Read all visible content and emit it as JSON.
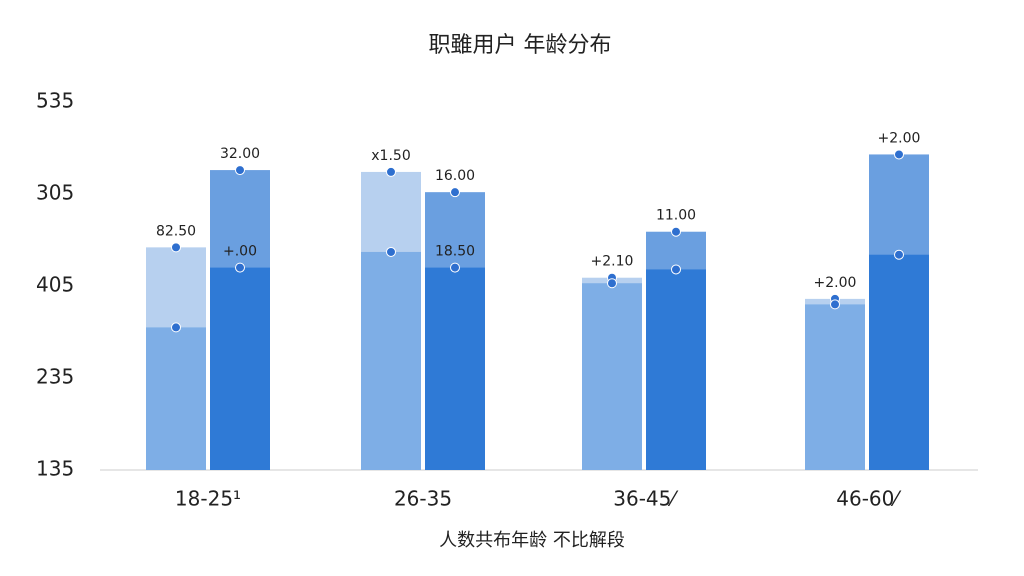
{
  "chart_data": {
    "type": "grouped-layered-bar",
    "title": "职雖用户 年龄分布",
    "x_label": "人数共布年龄 不比解段",
    "categories": [
      "18-25¹",
      "26-35",
      "36-45⁄",
      "46-60⁄"
    ],
    "y_labels": [
      "535",
      "305",
      "405",
      "235",
      "135"
    ],
    "ylim": [
      0,
      4
    ],
    "series": [
      {
        "color": "#b7d0ef",
        "values": [
          2.42,
          3.24,
          2.09,
          1.86
        ],
        "value_labels": [
          "82.50",
          "x1.50",
          "+2.10",
          "+2.00"
        ],
        "slot": 0
      },
      {
        "color": "#7eaee6",
        "values": [
          1.55,
          2.37,
          2.03,
          1.8
        ],
        "slot": 0
      },
      {
        "color": "#6a9fe0",
        "values": [
          3.26,
          3.02,
          2.59,
          3.43
        ],
        "value_labels": [
          "32.00",
          "16.00",
          "11.00",
          "+2.00"
        ],
        "slot": 1
      },
      {
        "color": "#2f7ad6",
        "values": [
          2.2,
          2.2,
          2.18,
          2.34
        ],
        "value_labels": [
          "+.00",
          "18.50",
          null,
          null
        ],
        "slot": 1
      }
    ],
    "dot_color": "#2e6fcf"
  }
}
